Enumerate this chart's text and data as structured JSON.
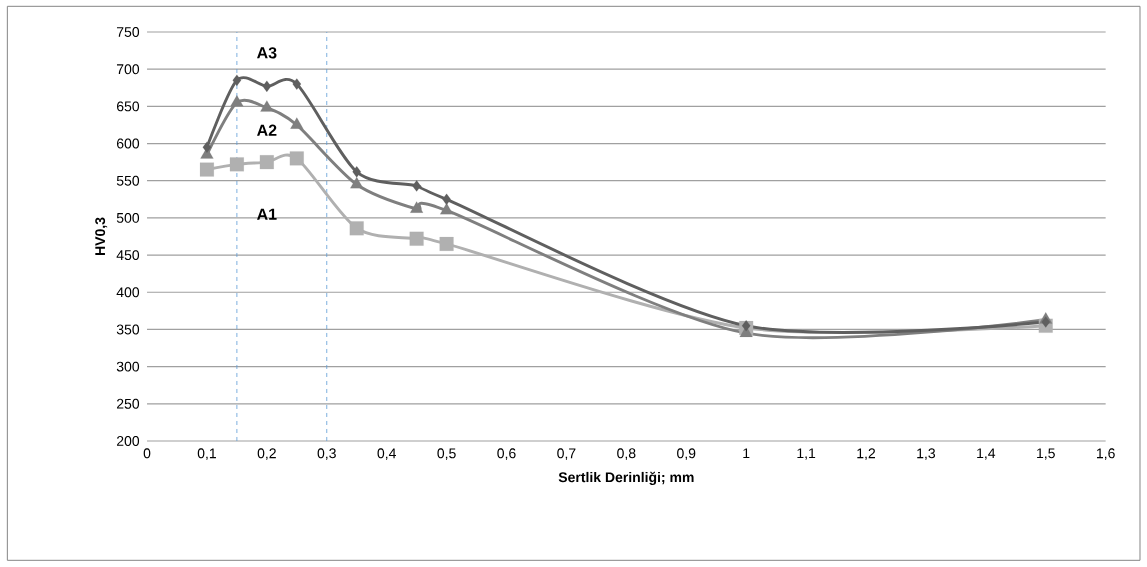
{
  "chart_data": {
    "type": "line",
    "xlabel": "Sertlik Derinliği; mm",
    "ylabel": "HV0,3",
    "x": [
      0.1,
      0.15,
      0.2,
      0.25,
      0.35,
      0.45,
      0.5,
      1,
      1.5
    ],
    "series": [
      {
        "name": "A1",
        "color": "#b0b0b0",
        "marker": "square",
        "values": [
          565,
          572,
          575,
          580,
          486,
          472,
          465,
          352,
          355
        ]
      },
      {
        "name": "A2",
        "color": "#7f7f7f",
        "marker": "triangle",
        "values": [
          585,
          655,
          648,
          625,
          545,
          512,
          510,
          345,
          363
        ]
      },
      {
        "name": "A3",
        "color": "#5f5f5f",
        "marker": "diamond",
        "values": [
          595,
          685,
          677,
          680,
          562,
          543,
          525,
          355,
          360
        ]
      }
    ],
    "xlim": [
      0,
      1.6
    ],
    "ylim": [
      200,
      750
    ],
    "xticks": [
      0,
      {
        "value": 0.1,
        "label": "0,1"
      },
      {
        "value": 0.2,
        "label": "0,2"
      },
      {
        "value": 0.3,
        "label": "0,3"
      },
      {
        "value": 0.4,
        "label": "0,4"
      },
      {
        "value": 0.5,
        "label": "0,5"
      },
      {
        "value": 0.6,
        "label": "0,6"
      },
      {
        "value": 0.7,
        "label": "0,7"
      },
      {
        "value": 0.8,
        "label": "0,8"
      },
      {
        "value": 0.9,
        "label": "0,9"
      },
      1,
      {
        "value": 1.1,
        "label": "1,1"
      },
      {
        "value": 1.2,
        "label": "1,2"
      },
      {
        "value": 1.3,
        "label": "1,3"
      },
      {
        "value": 1.4,
        "label": "1,4"
      },
      {
        "value": 1.5,
        "label": "1,5"
      },
      {
        "value": 1.6,
        "label": "1,6"
      }
    ],
    "yticks": [
      200,
      250,
      300,
      350,
      400,
      450,
      500,
      550,
      600,
      650,
      700,
      750
    ],
    "grid": "y",
    "ref_lines": [
      {
        "axis": "x",
        "value": 0.15,
        "color": "#5b9bd5",
        "line_style": "dashed"
      },
      {
        "axis": "x",
        "value": 0.3,
        "color": "#5b9bd5",
        "line_style": "dashed"
      }
    ]
  }
}
